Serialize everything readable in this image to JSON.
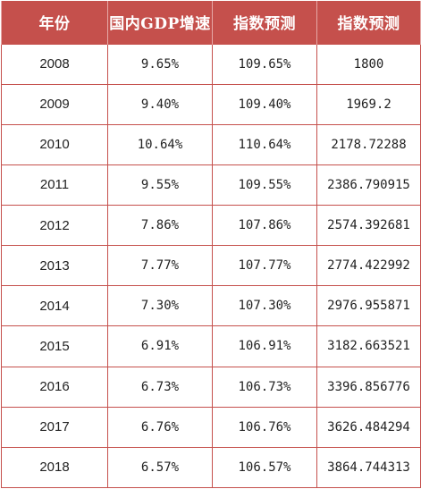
{
  "table": {
    "headers": [
      "年份",
      "国内GDP增速",
      "指数预测",
      "指数预测"
    ],
    "rows": [
      [
        "2008",
        "9.65%",
        "109.65%",
        "1800"
      ],
      [
        "2009",
        "9.40%",
        "109.40%",
        "1969.2"
      ],
      [
        "2010",
        "10.64%",
        "110.64%",
        "2178.72288"
      ],
      [
        "2011",
        "9.55%",
        "109.55%",
        "2386.790915"
      ],
      [
        "2012",
        "7.86%",
        "107.86%",
        "2574.392681"
      ],
      [
        "2013",
        "7.77%",
        "107.77%",
        "2774.422992"
      ],
      [
        "2014",
        "7.30%",
        "107.30%",
        "2976.955871"
      ],
      [
        "2015",
        "6.91%",
        "106.91%",
        "3182.663521"
      ],
      [
        "2016",
        "6.73%",
        "106.73%",
        "3396.856776"
      ],
      [
        "2017",
        "6.76%",
        "106.76%",
        "3626.484294"
      ],
      [
        "2018",
        "6.57%",
        "106.57%",
        "3864.744313"
      ]
    ]
  },
  "colors": {
    "header_background": "#c5504c",
    "header_text": "#ffffff",
    "grid_lines": "#c5504c",
    "cell_text": "#222222"
  }
}
